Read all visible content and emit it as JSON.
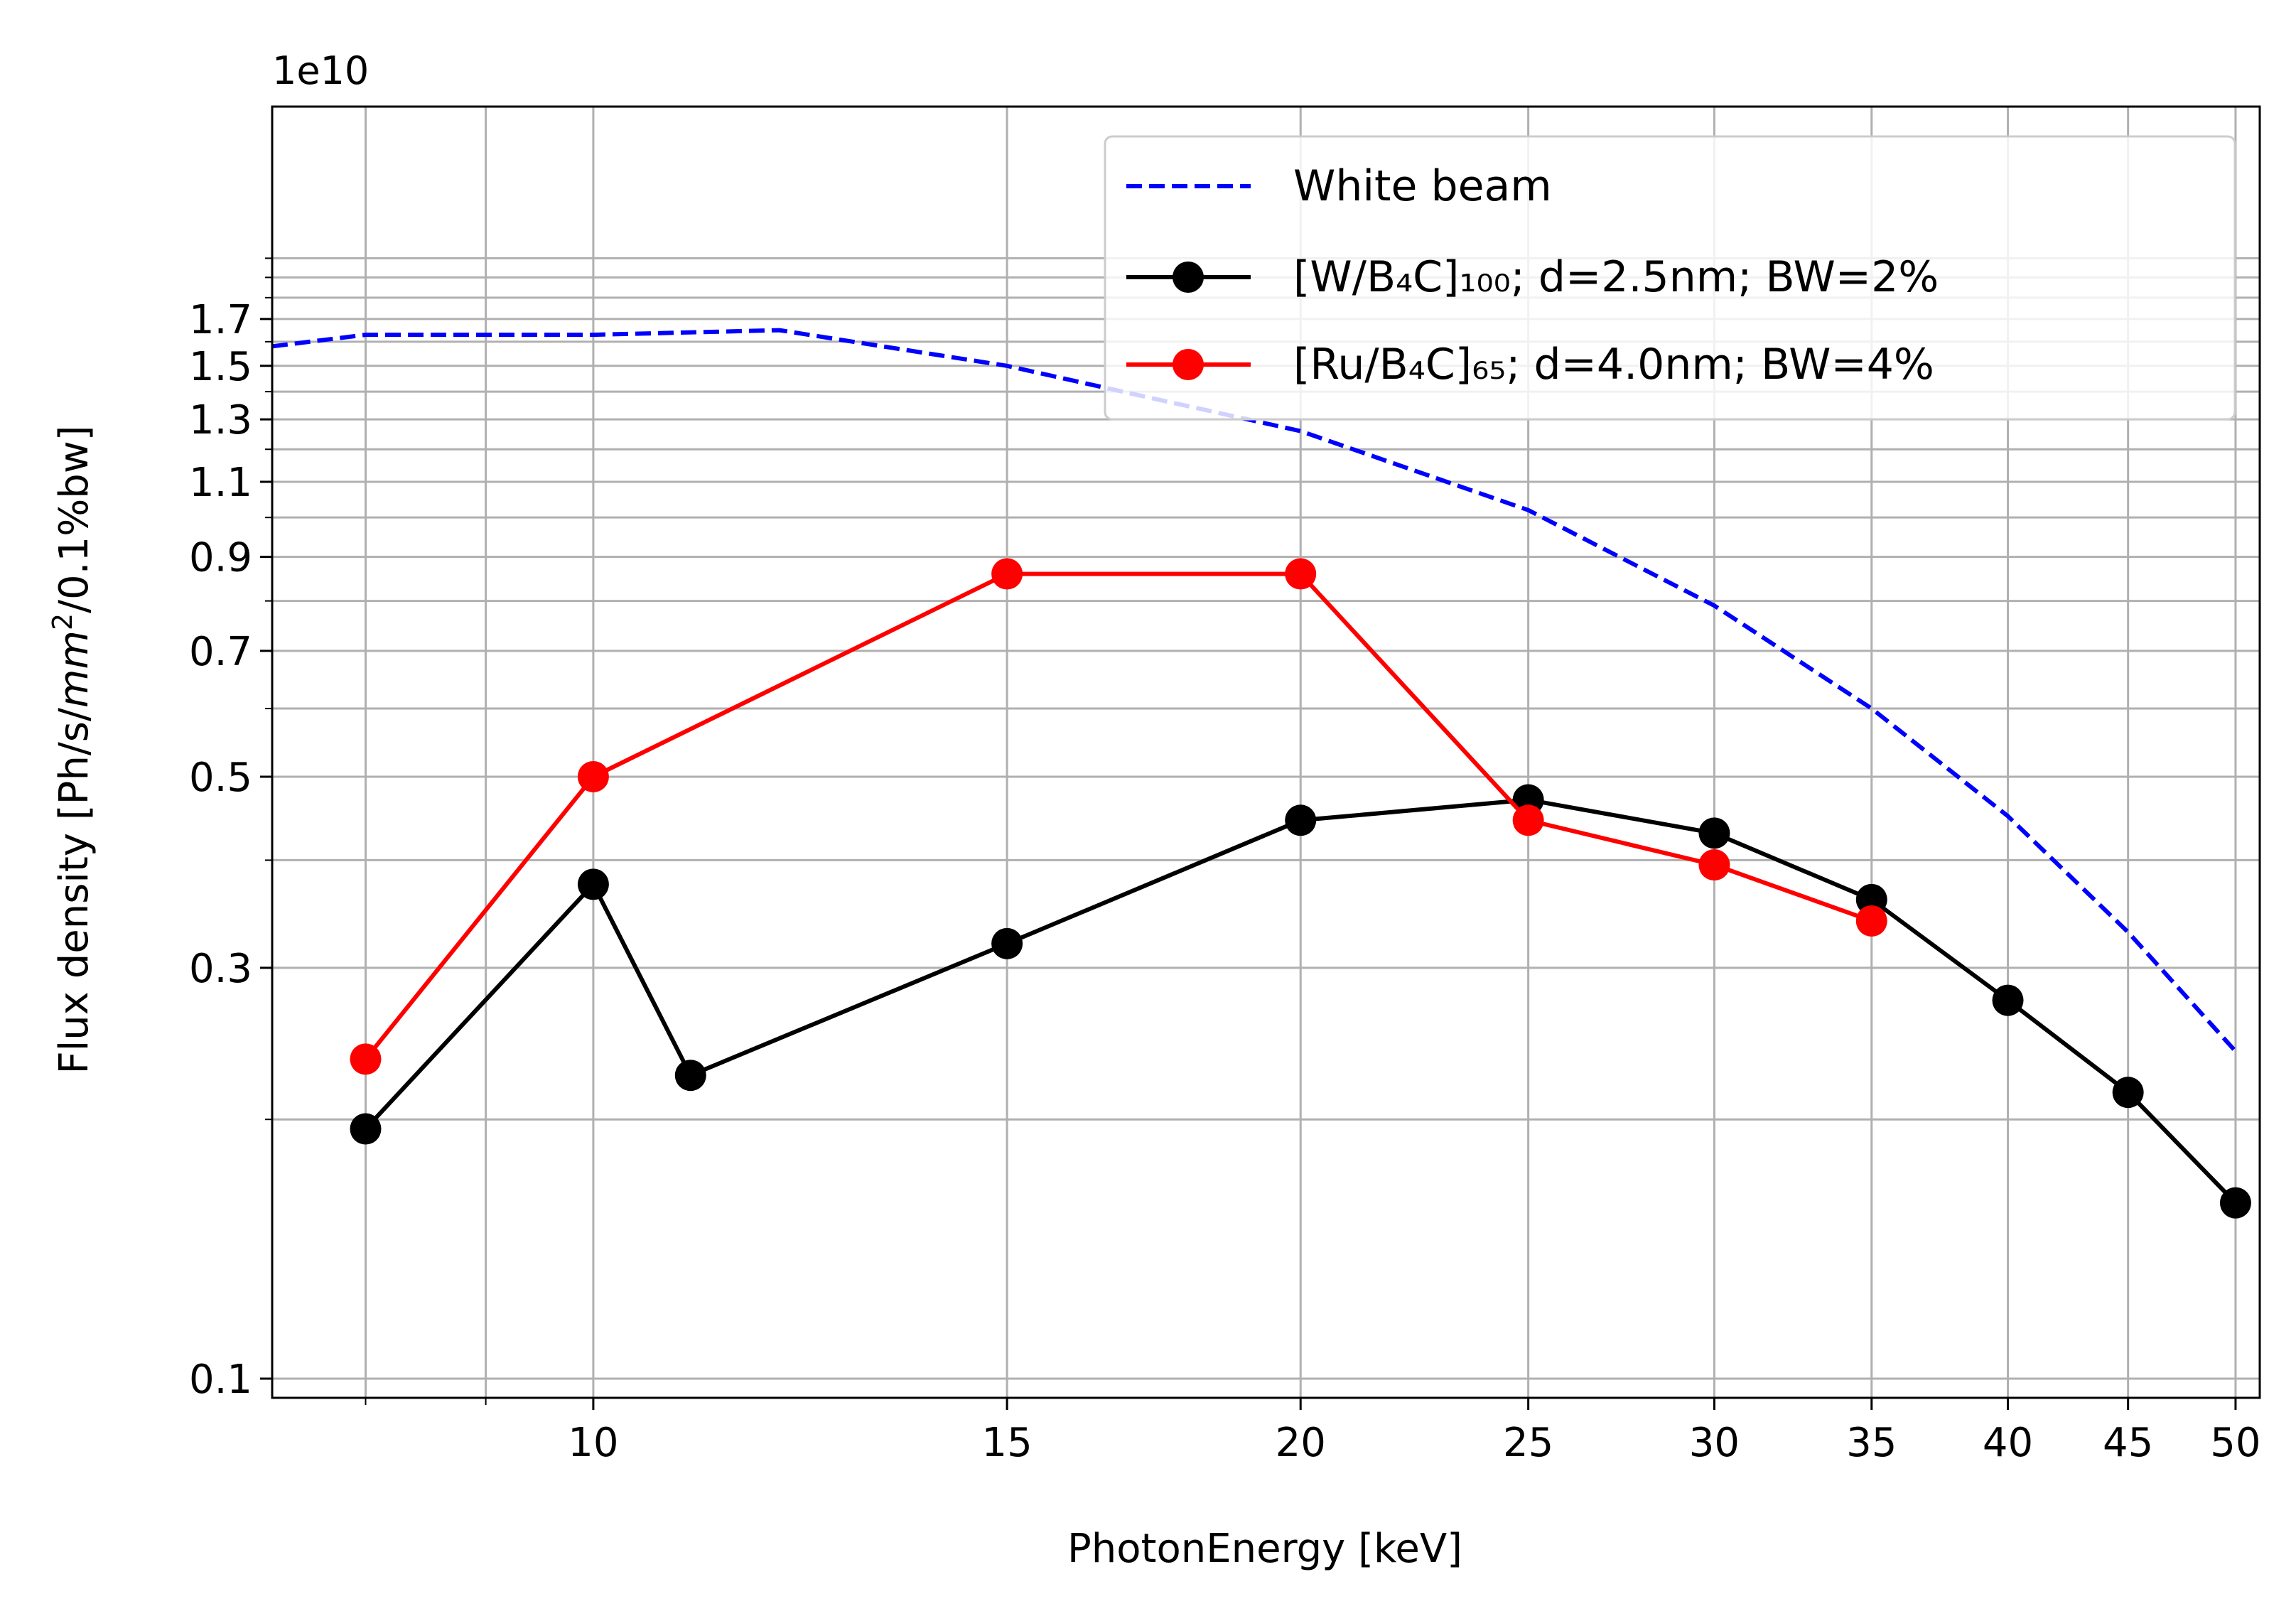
{
  "chart_data": {
    "type": "line",
    "title": "",
    "xlabel": "PhotonEnergy [keV]",
    "ylabel": "Flux density [Ph/s/mm²/0.1%bw]",
    "y_offset_text": "1e10",
    "x_scale": "log",
    "y_scale": "log",
    "xlim": [
      7.3,
      51.2
    ],
    "ylim": [
      0.095,
      3.0
    ],
    "grid": true,
    "legend_position": "top-right",
    "x_ticks": [
      10,
      15,
      20,
      25,
      30,
      35,
      40,
      45,
      50
    ],
    "y_ticks": [
      0.1,
      0.3,
      0.5,
      0.7,
      0.9,
      1.1,
      1.3,
      1.5,
      1.7
    ],
    "series": [
      {
        "name": "White beam",
        "color": "#0000ff",
        "style": "dashed",
        "marker": "none",
        "x": [
          7.3,
          8,
          10,
          12,
          15,
          17,
          20,
          25,
          30,
          35,
          40,
          45,
          50
        ],
        "y": [
          1.58,
          1.63,
          1.63,
          1.65,
          1.5,
          1.39,
          1.26,
          1.02,
          0.79,
          0.6,
          0.45,
          0.33,
          0.24
        ]
      },
      {
        "name": "[W/B₄C]₁₀₀; d=2.5nm; BW=2%",
        "color": "#000000",
        "style": "solid",
        "marker": "circle",
        "x": [
          8,
          10,
          11,
          15,
          20,
          25,
          30,
          35,
          40,
          45,
          50
        ],
        "y": [
          0.195,
          0.375,
          0.225,
          0.32,
          0.445,
          0.47,
          0.43,
          0.36,
          0.275,
          0.215,
          0.16
        ]
      },
      {
        "name": "[Ru/B₄C]₆₅; d=4.0nm; BW=4%",
        "color": "#ff0000",
        "style": "solid",
        "marker": "circle",
        "x": [
          8,
          10,
          15,
          20,
          25,
          30,
          35
        ],
        "y": [
          0.235,
          0.5,
          0.86,
          0.86,
          0.445,
          0.395,
          0.34
        ]
      }
    ]
  }
}
